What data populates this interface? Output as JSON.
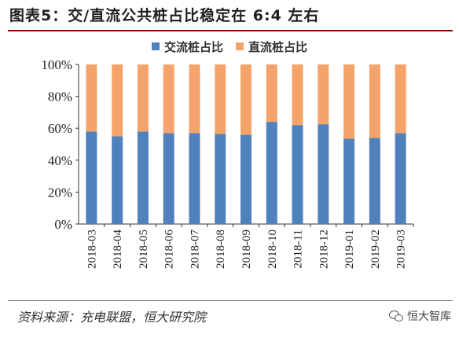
{
  "title": "图表5：交/直流公共桩占比稳定在 6:4 左右",
  "source": "资料来源：充电联盟，恒大研究院",
  "watermark": "恒大智库",
  "colors": {
    "ac": "#4f81bd",
    "dc": "#f4a46b"
  },
  "chart_data": {
    "type": "bar",
    "stacked": true,
    "categories": [
      "2018-03",
      "2018-04",
      "2018-05",
      "2018-06",
      "2018-07",
      "2018-08",
      "2018-09",
      "2018-10",
      "2018-11",
      "2018-12",
      "2019-01",
      "2019-02",
      "2019-03"
    ],
    "series": [
      {
        "name": "交流桩占比",
        "values": [
          58,
          55,
          58,
          57,
          57,
          56.5,
          56,
          64,
          62,
          62.5,
          53.5,
          54,
          57
        ]
      },
      {
        "name": "直流桩占比",
        "values": [
          42,
          45,
          42,
          43,
          43,
          43.5,
          44,
          36,
          38,
          37.5,
          46.5,
          46,
          43
        ]
      }
    ],
    "ylim": [
      0,
      100
    ],
    "yticks": [
      "0%",
      "20%",
      "40%",
      "60%",
      "80%",
      "100%"
    ],
    "xlabel": "",
    "ylabel": "",
    "legend": "top-center"
  }
}
